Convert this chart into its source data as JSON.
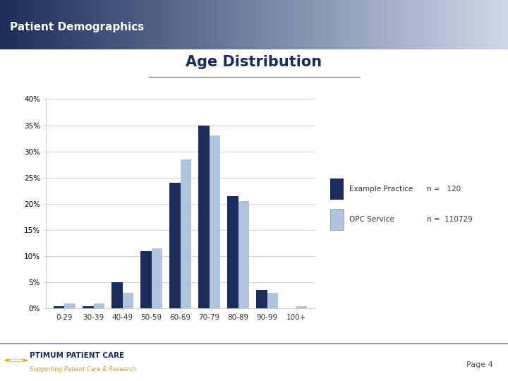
{
  "title": "Age Distribution",
  "header": "Patient Demographics",
  "categories": [
    "0-29",
    "30-39",
    "40-49",
    "50-59",
    "60-69",
    "70-79",
    "80-89",
    "90-99",
    "100+"
  ],
  "example_practice": [
    0.5,
    0.5,
    5.0,
    11.0,
    24.0,
    35.0,
    21.5,
    3.5,
    0.0
  ],
  "opc_service": [
    1.0,
    1.0,
    3.0,
    11.5,
    28.5,
    33.0,
    20.5,
    3.0,
    0.5
  ],
  "example_color": "#1a2d5a",
  "opc_color": "#b0c4de",
  "ylim": [
    0,
    40
  ],
  "yticks": [
    0,
    5,
    10,
    15,
    20,
    25,
    30,
    35,
    40
  ],
  "legend_labels": [
    "Example Practice",
    "OPC Service"
  ],
  "n_example": "n =   120",
  "n_opc": "n =  110729",
  "header_bg_left": "#1a2d5a",
  "header_bg_right": "#cdd8e8",
  "background_color": "#ffffff",
  "page_label": "Page 4",
  "footer_line_color": "#7a86b0",
  "footer_text_color": "#1a2d5a",
  "footer_italic_color": "#c8a030"
}
